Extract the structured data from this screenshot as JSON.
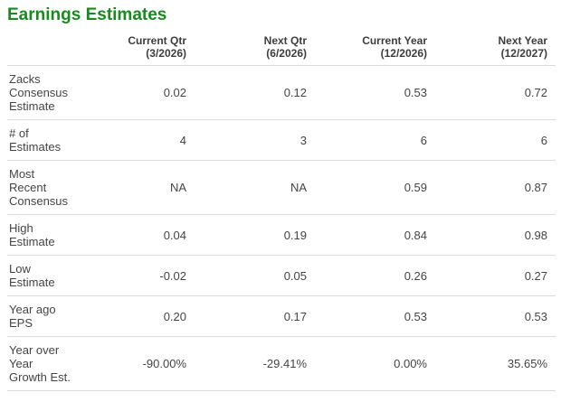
{
  "title": "Earnings Estimates",
  "theme": {
    "title_color": "#188a1e",
    "text_color": "#444444",
    "divider_color": "#dcdcdc",
    "background_color": "#ffffff"
  },
  "table": {
    "columns": [
      {
        "period": "Current Qtr",
        "date": "(3/2026)"
      },
      {
        "period": "Next Qtr",
        "date": "(6/2026)"
      },
      {
        "period": "Current Year",
        "date": "(12/2026)"
      },
      {
        "period": "Next Year",
        "date": "(12/2027)"
      }
    ],
    "rows": [
      {
        "label": "Zacks Consensus Estimate",
        "values": [
          "0.02",
          "0.12",
          "0.53",
          "0.72"
        ]
      },
      {
        "label": "# of Estimates",
        "values": [
          "4",
          "3",
          "6",
          "6"
        ]
      },
      {
        "label": "Most Recent Consensus",
        "values": [
          "NA",
          "NA",
          "0.59",
          "0.87"
        ]
      },
      {
        "label": "High Estimate",
        "values": [
          "0.04",
          "0.19",
          "0.84",
          "0.98"
        ]
      },
      {
        "label": "Low Estimate",
        "values": [
          "-0.02",
          "0.05",
          "0.26",
          "0.27"
        ]
      },
      {
        "label": "Year ago EPS",
        "values": [
          "0.20",
          "0.17",
          "0.53",
          "0.53"
        ]
      },
      {
        "label": "Year over Year Growth Est.",
        "values": [
          "-90.00%",
          "-29.41%",
          "0.00%",
          "35.65%"
        ]
      }
    ]
  }
}
